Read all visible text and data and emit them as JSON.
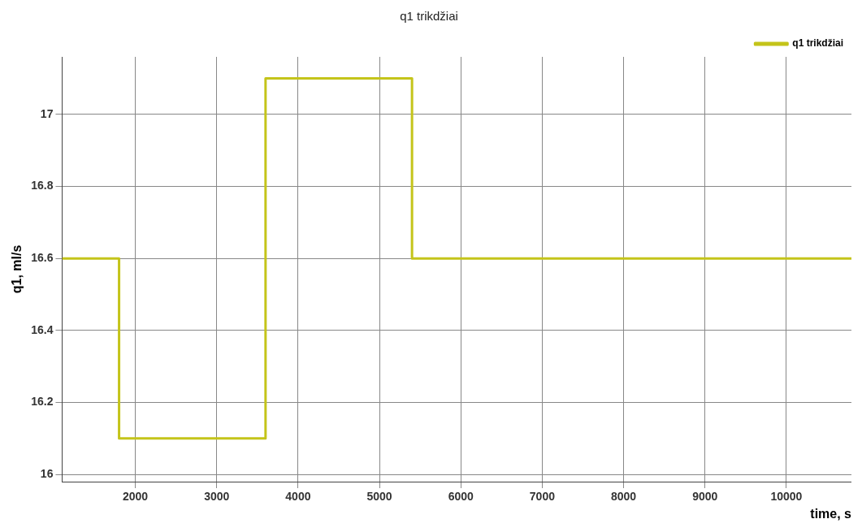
{
  "chart_data": {
    "type": "step",
    "title": "q1 trikdžiai",
    "xlabel": "time, s",
    "ylabel": "q1, ml/s",
    "x": [
      1100,
      1800,
      3600,
      5400,
      10800
    ],
    "series": [
      {
        "name": "q1 trikdžiai",
        "color": "#c4c41a",
        "values": [
          16.6,
          16.1,
          17.1,
          16.6,
          16.6
        ]
      }
    ],
    "xlim": [
      1100,
      10800
    ],
    "xticks": [
      2000,
      3000,
      4000,
      5000,
      6000,
      7000,
      8000,
      9000,
      10000
    ],
    "ylim": [
      15.98,
      17.16
    ],
    "yticks": [
      16,
      16.2,
      16.4,
      16.6,
      16.8,
      17
    ],
    "grid": true,
    "legend": "top right"
  }
}
